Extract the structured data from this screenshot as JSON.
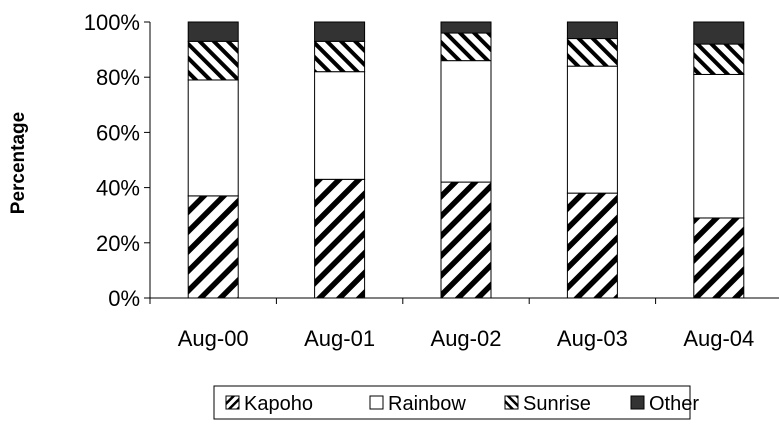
{
  "chart_data": {
    "type": "bar",
    "stacked": true,
    "normalized": true,
    "title": "",
    "xlabel": "",
    "ylabel": "Percentage",
    "ylim": [
      0,
      100
    ],
    "yticks": [
      "0%",
      "20%",
      "40%",
      "60%",
      "80%",
      "100%"
    ],
    "categories": [
      "Aug-00",
      "Aug-01",
      "Aug-02",
      "Aug-03",
      "Aug-04"
    ],
    "series": [
      {
        "name": "Kapoho",
        "values": [
          37,
          43,
          42,
          38,
          29
        ],
        "pattern": "diagonal-back",
        "color": "#000000"
      },
      {
        "name": "Rainbow",
        "values": [
          42,
          39,
          44,
          46,
          52
        ],
        "pattern": "solid",
        "color": "#ffffff"
      },
      {
        "name": "Sunrise",
        "values": [
          14,
          11,
          10,
          10,
          11
        ],
        "pattern": "diagonal-fwd",
        "color": "#000000"
      },
      {
        "name": "Other",
        "values": [
          7,
          7,
          4,
          6,
          8
        ],
        "pattern": "solid",
        "color": "#333333"
      }
    ],
    "grid": false,
    "legend_position": "bottom"
  }
}
